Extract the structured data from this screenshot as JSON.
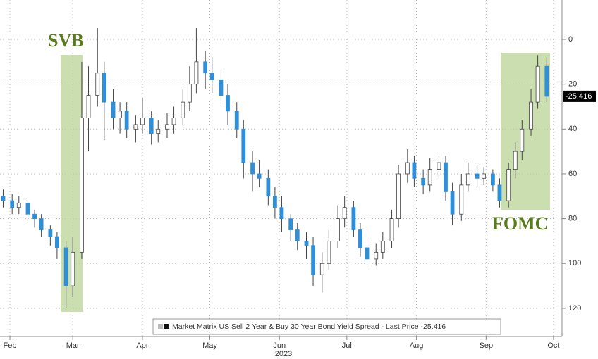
{
  "chart_data": {
    "type": "candlestick",
    "annotations": [
      "SVB",
      "FOMC"
    ],
    "year_label": "2023",
    "legend_text": "Market Matrix US Sell 2 Year & Buy 30 Year Bond Yield Spread - Last Price -25.416",
    "last_price_label": "-25.416",
    "up_color": "#ffffff",
    "down_color": "#2f8fd8",
    "wick_color": "#444444",
    "x": [
      29,
      33,
      36,
      40,
      43,
      46,
      50,
      53,
      57,
      60,
      64,
      67,
      71,
      74,
      78,
      81,
      84,
      88,
      91,
      95,
      98,
      102,
      105,
      109,
      112,
      115,
      119,
      122,
      126,
      129,
      133,
      136,
      140,
      143,
      147,
      150,
      153,
      157,
      160,
      164,
      167,
      171,
      174,
      178,
      181,
      185,
      188,
      191,
      195,
      198,
      202,
      205,
      209,
      212,
      216,
      219,
      223,
      226,
      229,
      233,
      236,
      240,
      243,
      247,
      250,
      254,
      257,
      260,
      264,
      267,
      271
    ],
    "open": [
      -70,
      -72,
      -75,
      -73,
      -78,
      -80,
      -85,
      -88,
      -93,
      -110,
      -95,
      -35,
      -25,
      -15,
      -28,
      -35,
      -32,
      -40,
      -38,
      -35,
      -42,
      -40,
      -38,
      -35,
      -28,
      -20,
      -10,
      -15,
      -18,
      -25,
      -32,
      -40,
      -55,
      -60,
      -62,
      -70,
      -75,
      -80,
      -85,
      -90,
      -92,
      -105,
      -100,
      -90,
      -80,
      -75,
      -85,
      -93,
      -98,
      -95,
      -90,
      -80,
      -60,
      -55,
      -62,
      -65,
      -58,
      -55,
      -68,
      -78,
      -65,
      -60,
      -62,
      -60,
      -65,
      -72,
      -58,
      -50,
      -40,
      -28,
      -12
    ],
    "high": [
      -67,
      -69,
      -70,
      -71,
      -76,
      -78,
      -83,
      -86,
      -90,
      -88,
      -10,
      -12,
      5,
      -10,
      -22,
      -28,
      -28,
      -34,
      -26,
      -32,
      -36,
      -33,
      -30,
      -22,
      -12,
      5,
      -5,
      -8,
      -14,
      -20,
      -28,
      -36,
      -50,
      -54,
      -58,
      -66,
      -70,
      -78,
      -82,
      -86,
      -88,
      -95,
      -85,
      -74,
      -70,
      -72,
      -82,
      -90,
      -91,
      -86,
      -76,
      -56,
      -49,
      -52,
      -58,
      -53,
      -52,
      -52,
      -64,
      -60,
      -55,
      -56,
      -57,
      -58,
      -62,
      -55,
      -46,
      -36,
      -22,
      -7,
      -8
    ],
    "low": [
      -75,
      -78,
      -78,
      -81,
      -84,
      -88,
      -92,
      -98,
      -120,
      -115,
      -98,
      -50,
      -30,
      -45,
      -40,
      -42,
      -44,
      -46,
      -42,
      -47,
      -46,
      -44,
      -42,
      -38,
      -32,
      -24,
      -22,
      -24,
      -30,
      -38,
      -44,
      -62,
      -68,
      -66,
      -74,
      -80,
      -86,
      -90,
      -94,
      -98,
      -110,
      -113,
      -103,
      -93,
      -84,
      -88,
      -97,
      -101,
      -101,
      -98,
      -93,
      -84,
      -64,
      -66,
      -69,
      -68,
      -62,
      -72,
      -83,
      -81,
      -68,
      -66,
      -65,
      -68,
      -75,
      -75,
      -62,
      -54,
      -43,
      -31,
      -28
    ],
    "close": [
      -72,
      -75,
      -73,
      -78,
      -80,
      -85,
      -88,
      -93,
      -110,
      -95,
      -35,
      -25,
      -15,
      -28,
      -35,
      -32,
      -40,
      -38,
      -35,
      -42,
      -40,
      -38,
      -35,
      -28,
      -20,
      -10,
      -15,
      -18,
      -25,
      -32,
      -40,
      -55,
      -60,
      -62,
      -70,
      -75,
      -80,
      -85,
      -90,
      -92,
      -105,
      -100,
      -90,
      -80,
      -75,
      -85,
      -93,
      -98,
      -95,
      -90,
      -80,
      -60,
      -55,
      -62,
      -65,
      -58,
      -55,
      -68,
      -78,
      -65,
      -60,
      -62,
      -60,
      -65,
      -72,
      -58,
      -50,
      -40,
      -28,
      -12,
      -25.416
    ],
    "xlim": [
      27.6,
      277.8
    ],
    "xticks": [
      {
        "value": 32,
        "label": "Feb"
      },
      {
        "value": 60,
        "label": "Mar"
      },
      {
        "value": 91,
        "label": "Apr"
      },
      {
        "value": 121,
        "label": "May"
      },
      {
        "value": 152,
        "label": "Jun"
      },
      {
        "value": 182,
        "label": "Jul"
      },
      {
        "value": 213,
        "label": "Aug"
      },
      {
        "value": 244,
        "label": "Sep"
      },
      {
        "value": 274,
        "label": "Oct"
      }
    ],
    "ylim": [
      -132.6,
      17.6
    ],
    "yticks": [
      0,
      {
        "value": -20,
        "label": "20"
      },
      {
        "value": -40,
        "label": "40"
      },
      {
        "value": -60,
        "label": "60"
      },
      {
        "value": -80,
        "label": "80"
      },
      {
        "value": -100,
        "label": "100"
      },
      {
        "value": -120,
        "label": "120"
      }
    ],
    "grid": true
  }
}
